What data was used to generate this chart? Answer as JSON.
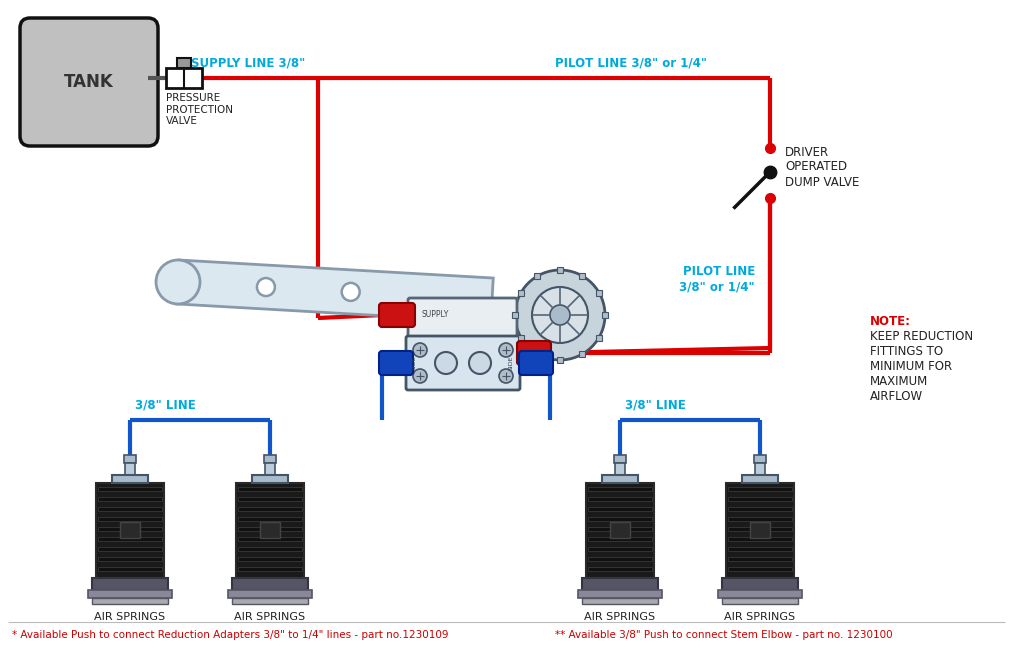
{
  "bg_color": "#ffffff",
  "red_color": "#dd0000",
  "blue_color": "#1155cc",
  "cyan_color": "#00aadd",
  "dark_color": "#222222",
  "lw_thick": 3.0,
  "lw_thin": 1.5,
  "footnote_left": "* Available Push to connect Reduction Adapters 3/8\" to 1/4\" lines - part no.1230109",
  "footnote_right": "** Available 3/8\" Push to connect Stem Elbow - part no. 1230100",
  "label_supply": "SUPPLY LINE 3/8\"",
  "label_pilot_top": "PILOT LINE 3/8\" or 1/4\"",
  "label_pilot_mid": "PILOT LINE\n3/8\" or 1/4\"",
  "label_tank": "TANK",
  "label_ppv": "PRESSURE\nPROTECTION\nVALVE",
  "label_dump": "DRIVER\nOPERATED\nDUMP VALVE",
  "label_note_head": "NOTE:",
  "label_note_body": "KEEP REDUCTION\nFITTINGS TO\nMINIMUM FOR\nMAXIMUM\nAIRFLOW",
  "label_line_38_left": "3/8\" LINE",
  "label_line_38_right": "3/8\" LINE",
  "label_air_springs": "AIR SPRINGS"
}
